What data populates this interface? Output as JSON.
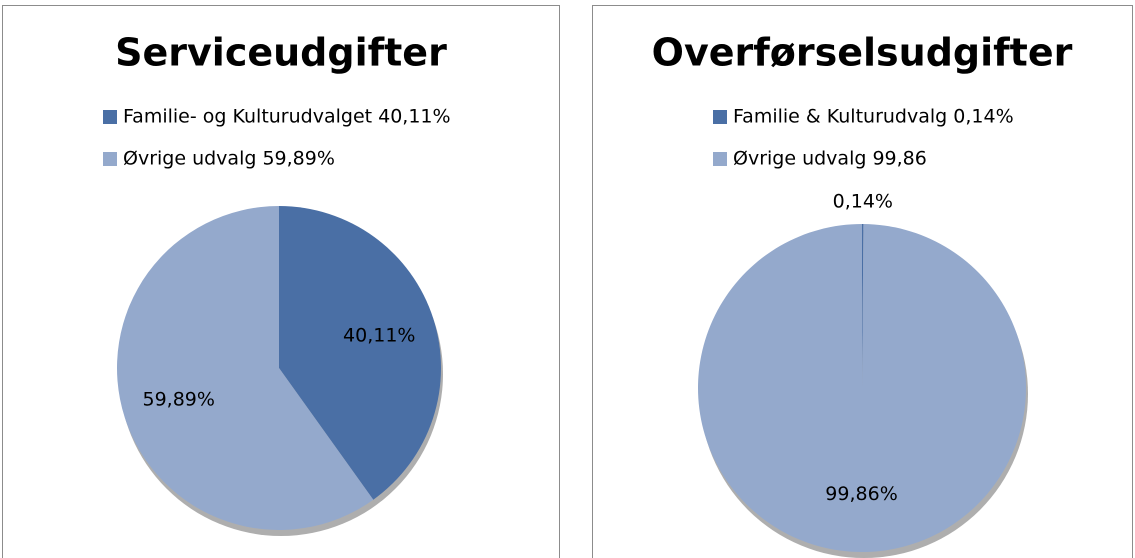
{
  "chart_data": [
    {
      "type": "pie",
      "title": "Serviceudgifter",
      "categories": [
        "Familie- og Kulturudvalget  40,11%",
        "Øvrige udvalg 59,89%"
      ],
      "values": [
        40.11,
        59.89
      ],
      "value_labels": [
        "40,11%",
        "59,89%"
      ],
      "colors": [
        "#4a6fa5",
        "#94a9cc"
      ]
    },
    {
      "type": "pie",
      "title": "Overførselsudgifter",
      "categories": [
        "Familie & Kulturudvalg 0,14%",
        "Øvrige udvalg 99,86"
      ],
      "values": [
        0.14,
        99.86
      ],
      "value_labels": [
        "0,14%",
        "99,86%"
      ],
      "colors": [
        "#4a6fa5",
        "#94a9cc"
      ]
    }
  ]
}
